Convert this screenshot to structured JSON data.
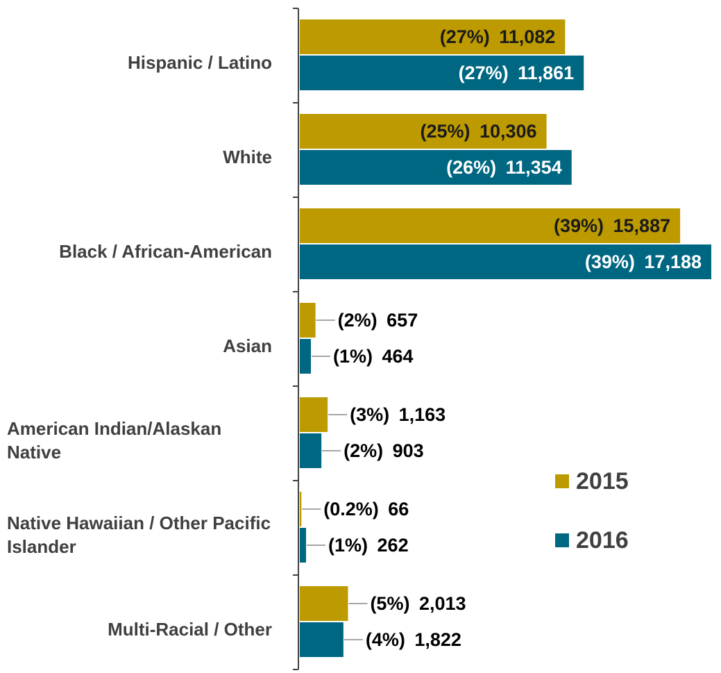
{
  "chart_data": {
    "type": "bar",
    "orientation": "horizontal",
    "categories": [
      "Hispanic / Latino",
      "White",
      "Black / African-American",
      "Asian",
      "American Indian/Alaskan Native",
      "Native Hawaiian / Other Pacific Islander",
      "Multi-Racial / Other"
    ],
    "series": [
      {
        "name": "2015",
        "color": "#bc9a00",
        "values": [
          11082,
          10306,
          15887,
          657,
          1163,
          66,
          2013
        ],
        "value_labels": [
          "(27%) 11,082",
          "(25%) 10,306",
          "(39%) 15,887",
          "(2%) 657",
          "(3%) 1,163",
          "(0.2%) 66",
          "(5%) 2,013"
        ]
      },
      {
        "name": "2016",
        "color": "#006783",
        "values": [
          11861,
          11354,
          17188,
          464,
          903,
          262,
          1822
        ],
        "value_labels": [
          "(27%) 11,861",
          "(26%) 11,354",
          "(39%) 17,188",
          "(1%) 464",
          "(2%) 903",
          "(1%) 262",
          "(4%) 1,822"
        ]
      }
    ],
    "legend": "right"
  }
}
